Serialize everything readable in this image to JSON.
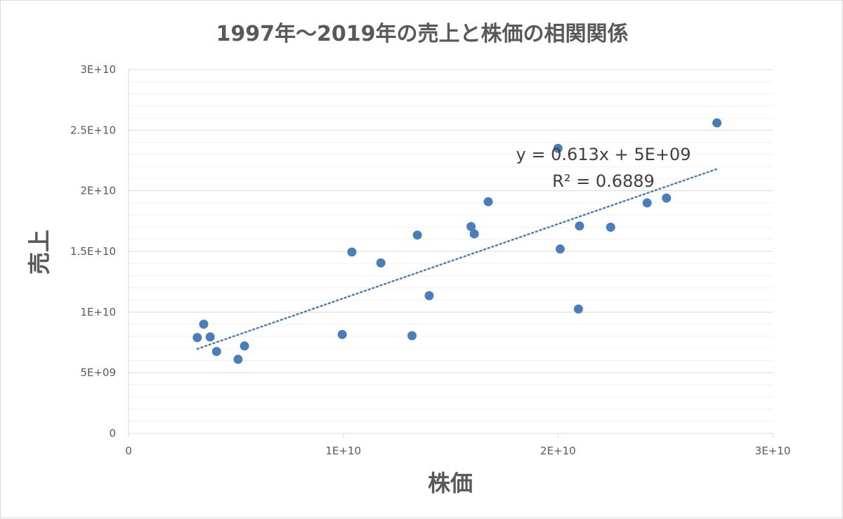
{
  "chart_data": {
    "type": "scatter",
    "title": "1997年～2019年の売上と株価の相関関係",
    "xlabel": "株価",
    "ylabel": "売上",
    "xlim": [
      0,
      30000000000
    ],
    "ylim": [
      0,
      30000000000
    ],
    "x_major_step": 10000000000,
    "y_major_step": 5000000000,
    "y_minor_step": 1000000000,
    "x_tick_labels": [
      "0",
      "1E+10",
      "2E+10",
      "3E+10"
    ],
    "y_tick_labels": [
      "0",
      "5E+09",
      "1E+10",
      "1.5E+10",
      "2E+10",
      "2.5E+10",
      "3E+10"
    ],
    "grid": true,
    "marker_color": "#4a7ebb",
    "trendline_color": "#4a7ebb",
    "points": [
      {
        "x": 3200000000,
        "y": 7900000000
      },
      {
        "x": 3500000000,
        "y": 9000000000
      },
      {
        "x": 3800000000,
        "y": 7950000000
      },
      {
        "x": 4100000000,
        "y": 6750000000
      },
      {
        "x": 5100000000,
        "y": 6100000000
      },
      {
        "x": 5400000000,
        "y": 7200000000
      },
      {
        "x": 9950000000,
        "y": 8150000000
      },
      {
        "x": 10400000000,
        "y": 14950000000
      },
      {
        "x": 11750000000,
        "y": 14050000000
      },
      {
        "x": 13200000000,
        "y": 8050000000
      },
      {
        "x": 13450000000,
        "y": 16350000000
      },
      {
        "x": 14000000000,
        "y": 11350000000
      },
      {
        "x": 15950000000,
        "y": 17050000000
      },
      {
        "x": 16100000000,
        "y": 16450000000
      },
      {
        "x": 16750000000,
        "y": 19100000000
      },
      {
        "x": 20000000000,
        "y": 23500000000
      },
      {
        "x": 20100000000,
        "y": 15200000000
      },
      {
        "x": 20950000000,
        "y": 10250000000
      },
      {
        "x": 21000000000,
        "y": 17100000000
      },
      {
        "x": 22450000000,
        "y": 17000000000
      },
      {
        "x": 24150000000,
        "y": 19000000000
      },
      {
        "x": 25050000000,
        "y": 19400000000
      },
      {
        "x": 27400000000,
        "y": 25600000000
      }
    ],
    "trendline": {
      "slope": 0.613,
      "intercept": 5000000000,
      "x_range": [
        3200000000,
        27400000000
      ],
      "equation_label": "y = 0.613x + 5E+09",
      "r2_label": "R² = 0.6889"
    }
  }
}
